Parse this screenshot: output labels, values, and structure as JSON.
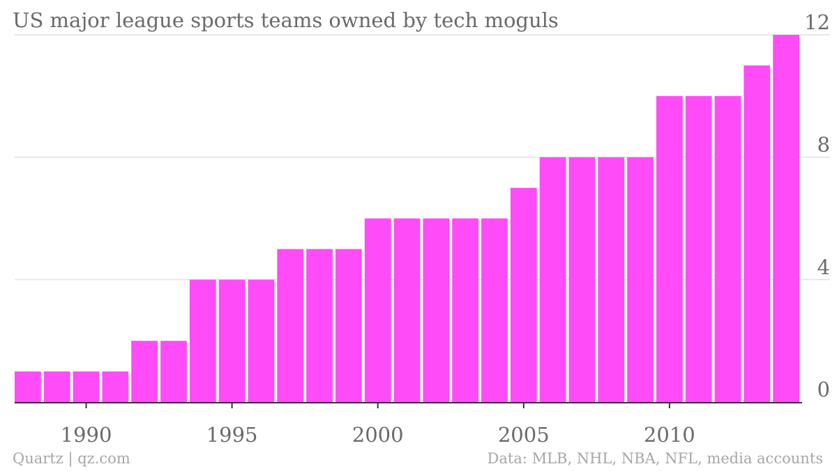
{
  "chart_data": {
    "type": "bar",
    "title": "US major league sports teams owned by tech moguls",
    "xlabel": "",
    "ylabel": "",
    "categories": [
      "1988",
      "1989",
      "1990",
      "1991",
      "1992",
      "1993",
      "1994",
      "1995",
      "1996",
      "1997",
      "1998",
      "1999",
      "2000",
      "2001",
      "2002",
      "2003",
      "2004",
      "2005",
      "2006",
      "2007",
      "2008",
      "2009",
      "2010",
      "2011",
      "2012",
      "2013",
      "2014"
    ],
    "values": [
      1,
      1,
      1,
      1,
      2,
      2,
      4,
      4,
      4,
      5,
      5,
      5,
      6,
      6,
      6,
      6,
      6,
      7,
      8,
      8,
      8,
      8,
      10,
      10,
      10,
      11,
      12
    ],
    "ylim": [
      0,
      12
    ],
    "yticks": [
      "0",
      "4",
      "8",
      "12"
    ],
    "xticks": [
      "1990",
      "1995",
      "2000",
      "2005",
      "2010"
    ],
    "y_axis_side": "right",
    "grid": true,
    "bar_color": "#ff4cf8",
    "grid_color": "#e0e0e0",
    "axis_color": "#333333"
  },
  "footer": {
    "source_left": "Quartz | qz.com",
    "source_right": "Data: MLB, NHL, NBA, NFL, media accounts"
  }
}
